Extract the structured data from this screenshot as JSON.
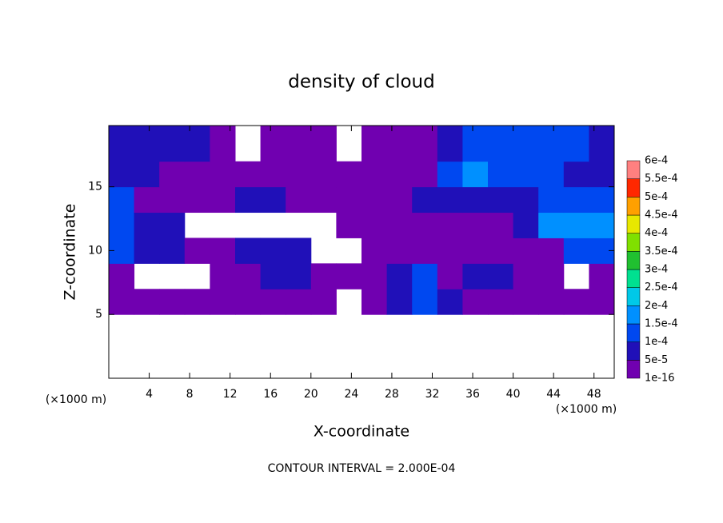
{
  "chart_data": {
    "type": "contour",
    "title": "density of cloud",
    "x_label": "X-coordinate",
    "y_label": "Z-coordinate",
    "x_unit_label": "(×1000 m)",
    "y_unit_label": "(×1000 m)",
    "footer": "CONTOUR INTERVAL = 2.000E-04",
    "xlim": [
      0,
      50
    ],
    "ylim": [
      0,
      19.8
    ],
    "xticks": [
      4,
      8,
      12,
      16,
      20,
      24,
      28,
      32,
      36,
      40,
      44,
      48
    ],
    "yticks": [
      5,
      10,
      15
    ],
    "x_bins": [
      0,
      2.5,
      5,
      7.5,
      10,
      12.5,
      15,
      17.5,
      20,
      22.5,
      25,
      27.5,
      30,
      32.5,
      35,
      37.5,
      40,
      42.5,
      45,
      47.5,
      50
    ],
    "y_bins": [
      5,
      7,
      9,
      11,
      13,
      15,
      17,
      19.8
    ],
    "z": [
      [
        3e-05,
        3e-05,
        3e-05,
        3e-05,
        3e-05,
        3e-05,
        3e-05,
        3e-05,
        3e-05,
        null,
        3e-05,
        7e-05,
        0.00012,
        7e-05,
        3e-05,
        3e-05,
        3e-05,
        3e-05,
        3e-05,
        3e-05
      ],
      [
        3e-05,
        null,
        null,
        null,
        3e-05,
        3e-05,
        7e-05,
        7e-05,
        3e-05,
        3e-05,
        3e-05,
        7e-05,
        0.00012,
        3e-05,
        7e-05,
        7e-05,
        3e-05,
        3e-05,
        null,
        3e-05
      ],
      [
        0.00012,
        7e-05,
        7e-05,
        3e-05,
        3e-05,
        7e-05,
        7e-05,
        7e-05,
        null,
        null,
        3e-05,
        3e-05,
        3e-05,
        3e-05,
        3e-05,
        3e-05,
        3e-05,
        3e-05,
        0.00012,
        0.00012
      ],
      [
        0.00012,
        7e-05,
        7e-05,
        null,
        null,
        null,
        null,
        null,
        null,
        3e-05,
        3e-05,
        3e-05,
        3e-05,
        3e-05,
        3e-05,
        3e-05,
        7e-05,
        0.00017,
        0.00017,
        0.00017
      ],
      [
        0.00012,
        3e-05,
        3e-05,
        3e-05,
        3e-05,
        7e-05,
        7e-05,
        3e-05,
        3e-05,
        3e-05,
        3e-05,
        3e-05,
        7e-05,
        7e-05,
        7e-05,
        7e-05,
        7e-05,
        0.00012,
        0.00012,
        0.00012
      ],
      [
        7e-05,
        7e-05,
        3e-05,
        3e-05,
        3e-05,
        3e-05,
        3e-05,
        3e-05,
        3e-05,
        3e-05,
        3e-05,
        3e-05,
        3e-05,
        0.00012,
        0.00017,
        0.00012,
        0.00012,
        0.00012,
        7e-05,
        7e-05
      ],
      [
        7e-05,
        7e-05,
        7e-05,
        7e-05,
        3e-05,
        null,
        3e-05,
        3e-05,
        3e-05,
        null,
        3e-05,
        3e-05,
        3e-05,
        7e-05,
        0.00012,
        0.00012,
        0.00012,
        0.00012,
        0.00012,
        7e-05
      ]
    ],
    "colorbar": {
      "ticks": [
        {
          "value": 1e-16,
          "label": "1e-16"
        },
        {
          "value": 5e-05,
          "label": "5e-5"
        },
        {
          "value": 0.0001,
          "label": "1e-4"
        },
        {
          "value": 0.00015,
          "label": "1.5e-4"
        },
        {
          "value": 0.0002,
          "label": "2e-4"
        },
        {
          "value": 0.00025,
          "label": "2.5e-4"
        },
        {
          "value": 0.0003,
          "label": "3e-4"
        },
        {
          "value": 0.00035,
          "label": "3.5e-4"
        },
        {
          "value": 0.0004,
          "label": "4e-4"
        },
        {
          "value": 0.00045,
          "label": "4.5e-4"
        },
        {
          "value": 0.0005,
          "label": "5e-4"
        },
        {
          "value": 0.00055,
          "label": "5.5e-4"
        },
        {
          "value": 0.0006,
          "label": "6e-4"
        }
      ],
      "colors": [
        "#7000b0",
        "#2010b8",
        "#0048f0",
        "#0090ff",
        "#00c8e8",
        "#00e090",
        "#20c030",
        "#80e000",
        "#e8e800",
        "#ffa000",
        "#ff2800",
        "#ff8080"
      ]
    }
  }
}
